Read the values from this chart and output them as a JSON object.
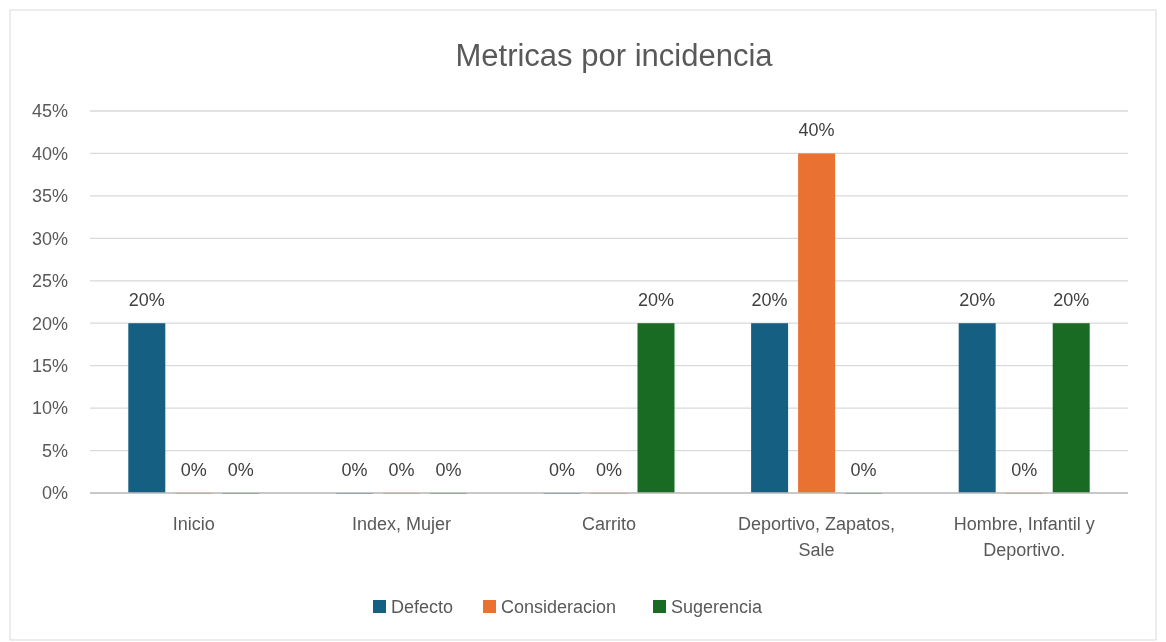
{
  "chart_data": {
    "type": "bar",
    "title": "Metricas por incidencia",
    "categories": [
      "Inicio",
      "Index, Mujer",
      "Carrito",
      "Deportivo, Zapatos, Sale",
      "Hombre, Infantil y Deportivo."
    ],
    "series": [
      {
        "name": "Defecto",
        "color": "#156082",
        "values": [
          20,
          0,
          0,
          20,
          20
        ],
        "value_labels": [
          "20%",
          "0%",
          "0%",
          "20%",
          "20%"
        ]
      },
      {
        "name": "Consideracion",
        "color": "#e97132",
        "values": [
          0,
          0,
          0,
          40,
          0
        ],
        "value_labels": [
          "0%",
          "0%",
          "0%",
          "40%",
          "0%"
        ]
      },
      {
        "name": "Sugerencia",
        "color": "#196b24",
        "values": [
          0,
          0,
          20,
          0,
          20
        ],
        "value_labels": [
          "0%",
          "0%",
          "20%",
          "0%",
          "20%"
        ]
      }
    ],
    "ylim": [
      0,
      45
    ],
    "yticks": [
      {
        "value": 0,
        "label": "0%"
      },
      {
        "value": 5,
        "label": "5%"
      },
      {
        "value": 10,
        "label": "10%"
      },
      {
        "value": 15,
        "label": "15%"
      },
      {
        "value": 20,
        "label": "20%"
      },
      {
        "value": 25,
        "label": "25%"
      },
      {
        "value": 30,
        "label": "30%"
      },
      {
        "value": 35,
        "label": "35%"
      },
      {
        "value": 40,
        "label": "40%"
      },
      {
        "value": 45,
        "label": "45%"
      }
    ],
    "grid": "y",
    "legend": "bottom"
  }
}
